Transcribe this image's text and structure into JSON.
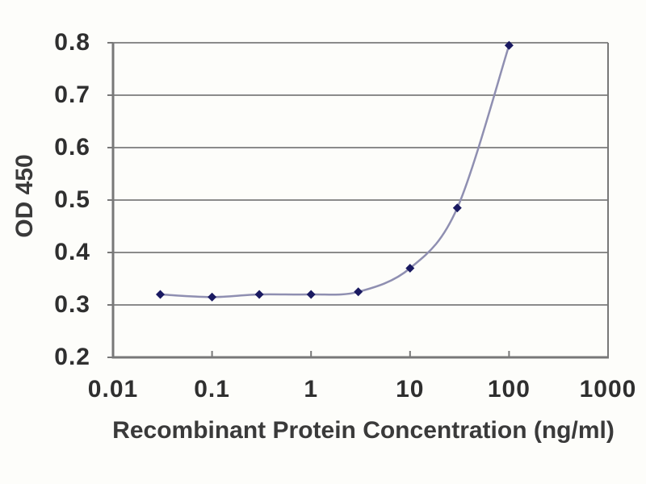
{
  "chart_data": {
    "type": "line",
    "title": "",
    "xlabel": "Recombinant Protein Concentration (ng/ml)",
    "ylabel": "OD 450",
    "x_scale": "log",
    "xlim": [
      0.01,
      1000
    ],
    "ylim": [
      0.2,
      0.8
    ],
    "x_ticks": [
      0.01,
      0.1,
      1,
      10,
      100,
      1000
    ],
    "x_tick_labels": [
      "0.01",
      "0.1",
      "1",
      "10",
      "100",
      "1000"
    ],
    "y_ticks": [
      0.2,
      0.3,
      0.4,
      0.5,
      0.6,
      0.7,
      0.8
    ],
    "y_tick_labels": [
      "0.2",
      "0.3",
      "0.4",
      "0.5",
      "0.6",
      "0.7",
      "0.8"
    ],
    "x": [
      0.03,
      0.1,
      0.3,
      1,
      3,
      10,
      30,
      100
    ],
    "y": [
      0.32,
      0.315,
      0.32,
      0.32,
      0.325,
      0.37,
      0.485,
      0.795
    ],
    "grid": "horizontal",
    "legend": "none",
    "marker": "diamond",
    "colors": {
      "line": "#8f8fb1",
      "marker": "#1a1a61",
      "grid": "#8b8b8b",
      "frame": "#787878",
      "tick_text": "#2f2f2f",
      "title_text": "#3a3a3a"
    }
  }
}
